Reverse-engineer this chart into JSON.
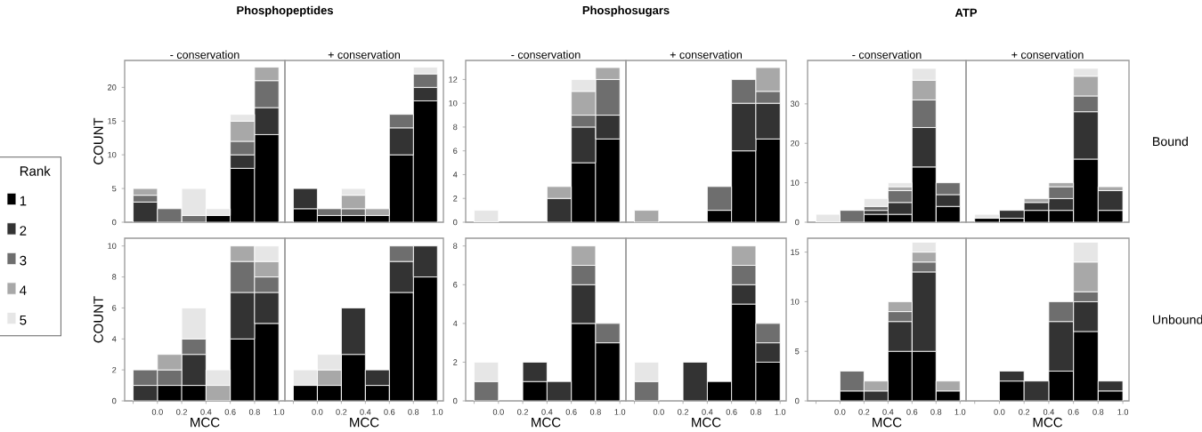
{
  "chart_data": [
    {
      "type": "bar",
      "stacked": true,
      "title": "Phosphopeptides",
      "subtitle": "- conservation",
      "ylabel": "COUNT",
      "x": [
        -0.1,
        0.1,
        0.3,
        0.5,
        0.7,
        0.9
      ],
      "xlim": [
        -0.27,
        1.05
      ],
      "ylim": [
        0,
        24
      ],
      "yticks": [
        0,
        5,
        10,
        15,
        20
      ],
      "tick_labels": "y",
      "legend": "left",
      "legend_title": "Rank",
      "series": [
        {
          "name": "1",
          "color": "#000000",
          "values": [
            0,
            0,
            0,
            1,
            8,
            13
          ]
        },
        {
          "name": "2",
          "color": "#333333",
          "values": [
            3,
            0,
            0,
            0,
            2,
            4
          ]
        },
        {
          "name": "3",
          "color": "#6e6e6e",
          "values": [
            1,
            2,
            1,
            0,
            2,
            4
          ]
        },
        {
          "name": "4",
          "color": "#a8a8a8",
          "values": [
            1,
            0,
            0,
            0,
            3,
            2
          ]
        },
        {
          "name": "5",
          "color": "#e6e6e6",
          "values": [
            0,
            0,
            4,
            1,
            1,
            0
          ]
        }
      ]
    },
    {
      "type": "bar",
      "stacked": true,
      "subtitle": "+ conservation",
      "x": [
        -0.1,
        0.1,
        0.3,
        0.5,
        0.7,
        0.9
      ],
      "xlim": [
        -0.27,
        1.05
      ],
      "ylim": [
        0,
        24
      ],
      "tick_labels": false,
      "series": [
        {
          "color": "#000000",
          "values": [
            2,
            1,
            1,
            1,
            10,
            18
          ]
        },
        {
          "color": "#333333",
          "values": [
            3,
            0,
            0,
            0,
            4,
            2
          ]
        },
        {
          "color": "#6e6e6e",
          "values": [
            0,
            1,
            1,
            0,
            2,
            2
          ]
        },
        {
          "color": "#a8a8a8",
          "values": [
            0,
            0,
            2,
            1,
            0,
            0
          ]
        },
        {
          "color": "#e6e6e6",
          "values": [
            0,
            0,
            1,
            0,
            0,
            1
          ]
        }
      ]
    },
    {
      "type": "bar",
      "stacked": true,
      "title": "Phosphosugars",
      "subtitle": "- conservation",
      "x": [
        -0.1,
        0.1,
        0.3,
        0.5,
        0.7,
        0.9
      ],
      "xlim": [
        -0.27,
        1.05
      ],
      "ylim": [
        0,
        13.6
      ],
      "yticks": [
        0,
        2,
        4,
        6,
        8,
        10,
        12
      ],
      "tick_labels": "y",
      "series": [
        {
          "color": "#000000",
          "values": [
            0,
            0,
            0,
            0,
            5,
            7
          ]
        },
        {
          "color": "#333333",
          "values": [
            0,
            0,
            0,
            2,
            3,
            2
          ]
        },
        {
          "color": "#6e6e6e",
          "values": [
            0,
            0,
            0,
            0,
            1,
            3
          ]
        },
        {
          "color": "#a8a8a8",
          "values": [
            0,
            0,
            0,
            1,
            2,
            1
          ]
        },
        {
          "color": "#e6e6e6",
          "values": [
            1,
            0,
            0,
            0,
            1,
            0
          ]
        }
      ]
    },
    {
      "type": "bar",
      "stacked": true,
      "subtitle": "+ conservation",
      "x": [
        -0.1,
        0.1,
        0.3,
        0.5,
        0.7,
        0.9
      ],
      "xlim": [
        -0.27,
        1.05
      ],
      "ylim": [
        0,
        13.6
      ],
      "tick_labels": false,
      "series": [
        {
          "color": "#000000",
          "values": [
            0,
            0,
            0,
            1,
            6,
            7
          ]
        },
        {
          "color": "#333333",
          "values": [
            0,
            0,
            0,
            0,
            4,
            3
          ]
        },
        {
          "color": "#6e6e6e",
          "values": [
            0,
            0,
            0,
            2,
            2,
            1
          ]
        },
        {
          "color": "#a8a8a8",
          "values": [
            1,
            0,
            0,
            0,
            0,
            2
          ]
        },
        {
          "color": "#e6e6e6",
          "values": [
            0,
            0,
            0,
            0,
            0,
            0
          ]
        }
      ]
    },
    {
      "type": "bar",
      "stacked": true,
      "title": "ATP",
      "subtitle": "- conservation",
      "x": [
        -0.1,
        0.1,
        0.3,
        0.5,
        0.7,
        0.9
      ],
      "xlim": [
        -0.27,
        1.05
      ],
      "ylim": [
        0,
        41
      ],
      "yticks": [
        0,
        10,
        20,
        30
      ],
      "tick_labels": "y",
      "series": [
        {
          "color": "#000000",
          "values": [
            0,
            0,
            2,
            2,
            14,
            4
          ]
        },
        {
          "color": "#333333",
          "values": [
            0,
            0,
            1,
            3,
            10,
            3
          ]
        },
        {
          "color": "#6e6e6e",
          "values": [
            0,
            3,
            1,
            3,
            7,
            3
          ]
        },
        {
          "color": "#a8a8a8",
          "values": [
            0,
            0,
            0,
            1,
            5,
            0
          ]
        },
        {
          "color": "#e6e6e6",
          "values": [
            2,
            0,
            2,
            1,
            3,
            0
          ]
        }
      ]
    },
    {
      "type": "bar",
      "stacked": true,
      "subtitle": "+ conservation",
      "annotations": [
        "Bound"
      ],
      "x": [
        -0.1,
        0.1,
        0.3,
        0.5,
        0.7,
        0.9
      ],
      "xlim": [
        -0.27,
        1.05
      ],
      "ylim": [
        0,
        41
      ],
      "tick_labels": false,
      "series": [
        {
          "color": "#000000",
          "values": [
            1,
            1,
            3,
            3,
            16,
            3
          ]
        },
        {
          "color": "#333333",
          "values": [
            0,
            2,
            2,
            3,
            12,
            5
          ]
        },
        {
          "color": "#6e6e6e",
          "values": [
            0,
            0,
            0,
            3,
            4,
            0
          ]
        },
        {
          "color": "#a8a8a8",
          "values": [
            0,
            0,
            1,
            1,
            5,
            1
          ]
        },
        {
          "color": "#e6e6e6",
          "values": [
            1,
            0,
            0,
            0,
            2,
            0
          ]
        }
      ]
    },
    {
      "type": "bar",
      "stacked": true,
      "xlabel": "MCC",
      "ylabel": "COUNT",
      "x": [
        -0.1,
        0.1,
        0.3,
        0.5,
        0.7,
        0.9
      ],
      "xlim": [
        -0.27,
        1.05
      ],
      "xticks": [
        {
          "value": -0.2,
          "label": null
        },
        {
          "value": 0,
          "label": "0.0"
        },
        0.2,
        0.4,
        0.6,
        0.8,
        {
          "value": 1,
          "label": "1.0"
        }
      ],
      "ylim": [
        0,
        10.5
      ],
      "yticks": [
        0,
        2,
        4,
        6,
        8,
        10
      ],
      "series": [
        {
          "color": "#000000",
          "values": [
            0,
            1,
            1,
            0,
            4,
            5
          ]
        },
        {
          "color": "#333333",
          "values": [
            1,
            0,
            2,
            0,
            3,
            2
          ]
        },
        {
          "color": "#6e6e6e",
          "values": [
            1,
            1,
            1,
            0,
            2,
            1
          ]
        },
        {
          "color": "#a8a8a8",
          "values": [
            0,
            1,
            0,
            1,
            1,
            1
          ]
        },
        {
          "color": "#e6e6e6",
          "values": [
            0,
            0,
            2,
            1,
            0,
            1
          ]
        }
      ]
    },
    {
      "type": "bar",
      "stacked": true,
      "xlabel": "MCC",
      "x": [
        -0.1,
        0.1,
        0.3,
        0.5,
        0.7,
        0.9
      ],
      "xlim": [
        -0.27,
        1.05
      ],
      "xticks": [
        {
          "value": -0.2,
          "label": null
        },
        {
          "value": 0,
          "label": "0.0"
        },
        0.2,
        0.4,
        0.6,
        0.8,
        {
          "value": 1,
          "label": "1.0"
        }
      ],
      "ylim": [
        0,
        10.5
      ],
      "tick_labels": "x",
      "series": [
        {
          "color": "#000000",
          "values": [
            1,
            1,
            3,
            1,
            7,
            8
          ]
        },
        {
          "color": "#333333",
          "values": [
            0,
            0,
            3,
            1,
            2,
            2
          ]
        },
        {
          "color": "#6e6e6e",
          "values": [
            0,
            0,
            0,
            0,
            1,
            0
          ]
        },
        {
          "color": "#a8a8a8",
          "values": [
            0,
            1,
            0,
            0,
            0,
            0
          ]
        },
        {
          "color": "#e6e6e6",
          "values": [
            1,
            1,
            0,
            0,
            0,
            0
          ]
        }
      ]
    },
    {
      "type": "bar",
      "stacked": true,
      "xlabel": "MCC",
      "x": [
        -0.1,
        0.1,
        0.3,
        0.5,
        0.7,
        0.9
      ],
      "xlim": [
        -0.27,
        1.05
      ],
      "xticks": [
        {
          "value": -0.2,
          "label": null
        },
        {
          "value": 0,
          "label": "0.0"
        },
        0.2,
        0.4,
        0.6,
        0.8,
        {
          "value": 1,
          "label": "1.0"
        }
      ],
      "ylim": [
        0,
        8.4
      ],
      "yticks": [
        0,
        2,
        4,
        6,
        8
      ],
      "series": [
        {
          "color": "#000000",
          "values": [
            0,
            0,
            1,
            0,
            4,
            3
          ]
        },
        {
          "color": "#333333",
          "values": [
            0,
            0,
            1,
            1,
            2,
            0
          ]
        },
        {
          "color": "#6e6e6e",
          "values": [
            1,
            0,
            0,
            0,
            1,
            1
          ]
        },
        {
          "color": "#a8a8a8",
          "values": [
            0,
            0,
            0,
            0,
            1,
            0
          ]
        },
        {
          "color": "#e6e6e6",
          "values": [
            1,
            0,
            0,
            0,
            0,
            0
          ]
        }
      ]
    },
    {
      "type": "bar",
      "stacked": true,
      "xlabel": "MCC",
      "x": [
        -0.1,
        0.1,
        0.3,
        0.5,
        0.7,
        0.9
      ],
      "xlim": [
        -0.27,
        1.05
      ],
      "xticks": [
        {
          "value": -0.2,
          "label": null
        },
        {
          "value": 0,
          "label": "0.0"
        },
        0.2,
        0.4,
        0.6,
        0.8,
        {
          "value": 1,
          "label": "1.0"
        }
      ],
      "ylim": [
        0,
        8.4
      ],
      "tick_labels": "x",
      "series": [
        {
          "color": "#000000",
          "values": [
            0,
            0,
            0,
            1,
            5,
            2
          ]
        },
        {
          "color": "#333333",
          "values": [
            0,
            0,
            2,
            0,
            1,
            1
          ]
        },
        {
          "color": "#6e6e6e",
          "values": [
            1,
            0,
            0,
            0,
            1,
            1
          ]
        },
        {
          "color": "#a8a8a8",
          "values": [
            0,
            0,
            0,
            0,
            1,
            0
          ]
        },
        {
          "color": "#e6e6e6",
          "values": [
            1,
            0,
            0,
            0,
            0,
            0
          ]
        }
      ]
    },
    {
      "type": "bar",
      "stacked": true,
      "xlabel": "MCC",
      "x": [
        -0.1,
        0.1,
        0.3,
        0.5,
        0.7,
        0.9
      ],
      "xlim": [
        -0.27,
        1.05
      ],
      "xticks": [
        {
          "value": -0.2,
          "label": null
        },
        {
          "value": 0,
          "label": "0.0"
        },
        0.2,
        0.4,
        0.6,
        0.8,
        {
          "value": 1,
          "label": "1.0"
        }
      ],
      "ylim": [
        0,
        16.4
      ],
      "yticks": [
        0,
        5,
        10,
        15
      ],
      "series": [
        {
          "color": "#000000",
          "values": [
            0,
            1,
            0,
            5,
            5,
            1
          ]
        },
        {
          "color": "#333333",
          "values": [
            0,
            0,
            1,
            3,
            8,
            0
          ]
        },
        {
          "color": "#6e6e6e",
          "values": [
            0,
            2,
            0,
            1,
            1,
            0
          ]
        },
        {
          "color": "#a8a8a8",
          "values": [
            0,
            0,
            1,
            1,
            1,
            1
          ]
        },
        {
          "color": "#e6e6e6",
          "values": [
            0,
            0,
            0,
            0,
            1,
            0
          ]
        }
      ]
    },
    {
      "type": "bar",
      "stacked": true,
      "xlabel": "MCC",
      "annotations": [
        "Unbound"
      ],
      "x": [
        -0.1,
        0.1,
        0.3,
        0.5,
        0.7,
        0.9
      ],
      "xlim": [
        -0.27,
        1.05
      ],
      "xticks": [
        {
          "value": -0.2,
          "label": null
        },
        {
          "value": 0,
          "label": "0.0"
        },
        0.2,
        0.4,
        0.6,
        0.8,
        {
          "value": 1,
          "label": "1.0"
        }
      ],
      "ylim": [
        0,
        16.4
      ],
      "tick_labels": "x",
      "series": [
        {
          "color": "#000000",
          "values": [
            0,
            2,
            0,
            3,
            7,
            1
          ]
        },
        {
          "color": "#333333",
          "values": [
            0,
            1,
            2,
            5,
            3,
            1
          ]
        },
        {
          "color": "#6e6e6e",
          "values": [
            0,
            0,
            0,
            2,
            1,
            0
          ]
        },
        {
          "color": "#a8a8a8",
          "values": [
            0,
            0,
            0,
            0,
            3,
            0
          ]
        },
        {
          "color": "#e6e6e6",
          "values": [
            0,
            0,
            0,
            0,
            2,
            0
          ]
        }
      ]
    }
  ]
}
